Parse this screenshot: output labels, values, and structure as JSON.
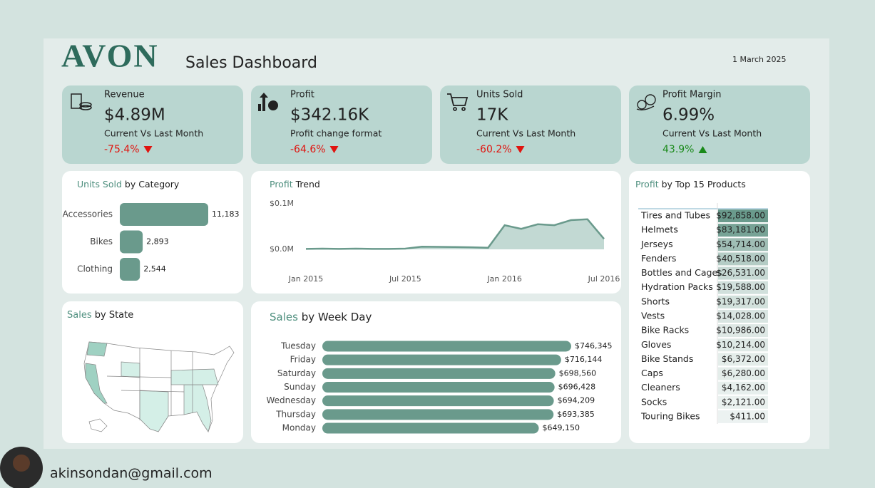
{
  "header": {
    "logo": "AVON",
    "title": "Sales Dashboard",
    "date": "1 March 2025"
  },
  "kpis": [
    {
      "label": "Revenue",
      "value": "$4.89M",
      "subtitle": "Current Vs Last Month",
      "change": "-75.4%",
      "direction": "down"
    },
    {
      "label": "Profit",
      "value": "$342.16K",
      "subtitle": "Profit change format",
      "change": "-64.6%",
      "direction": "down"
    },
    {
      "label": "Units Sold",
      "value": "17K",
      "subtitle": "Current Vs Last Month",
      "change": "-60.2%",
      "direction": "down"
    },
    {
      "label": "Profit Margin",
      "value": "6.99%",
      "subtitle": "Current Vs Last Month",
      "change": "43.9%",
      "direction": "up"
    }
  ],
  "chart_data": [
    {
      "type": "bar",
      "orientation": "horizontal",
      "title": {
        "highlight": "Units Sold",
        "rest": "by Category"
      },
      "categories": [
        "Accessories",
        "Bikes",
        "Clothing"
      ],
      "values": [
        11183,
        2893,
        2544
      ],
      "value_labels": [
        "11,183",
        "2,893",
        "2,544"
      ],
      "color": "#6a9a8c"
    },
    {
      "type": "area",
      "title": {
        "highlight": "Profit",
        "rest": "Trend"
      },
      "x": [
        "2015-01",
        "2015-02",
        "2015-03",
        "2015-04",
        "2015-05",
        "2015-06",
        "2015-07",
        "2015-08",
        "2015-09",
        "2015-10",
        "2015-11",
        "2015-12",
        "2016-01",
        "2016-02",
        "2016-03",
        "2016-04",
        "2016-05",
        "2016-06",
        "2016-07"
      ],
      "values": [
        1000,
        1500,
        1000,
        1500,
        1000,
        1000,
        1500,
        6000,
        5500,
        5000,
        4500,
        3500,
        53000,
        45000,
        55000,
        53000,
        64000,
        66000,
        23000
      ],
      "color": "#6a9a8c",
      "fill": "#c2d9d3",
      "xlim": [
        "2015-01",
        "2016-07"
      ],
      "xticks": [
        {
          "value": "2015-01",
          "label": "Jan 2015"
        },
        {
          "value": "2015-07",
          "label": "Jul 2015"
        },
        {
          "value": "2016-01",
          "label": "Jan 2016"
        },
        {
          "value": "2016-07",
          "label": "Jul 2016"
        }
      ],
      "ylim": [
        0,
        100000
      ],
      "yticks": [
        {
          "value": 100000,
          "label": "$0.1M"
        },
        {
          "value": 0,
          "label": "$0.0M"
        }
      ]
    },
    {
      "type": "bar",
      "orientation": "horizontal",
      "title": {
        "highlight": "Sales",
        "rest": "by Week Day"
      },
      "categories": [
        "Tuesday",
        "Friday",
        "Saturday",
        "Sunday",
        "Wednesday",
        "Thursday",
        "Monday"
      ],
      "values": [
        746345,
        716144,
        698560,
        696428,
        694209,
        693385,
        649150
      ],
      "value_labels": [
        "$746,345",
        "$716,144",
        "$698,560",
        "$696,428",
        "$694,209",
        "$693,385",
        "$649,150"
      ],
      "color": "#6a9a8c"
    },
    {
      "type": "table",
      "title": {
        "highlight": "Profit",
        "rest": "by Top 15 Products"
      },
      "categories": [
        "Tires and Tubes",
        "Helmets",
        "Jerseys",
        "Fenders",
        "Bottles and Cages",
        "Hydration Packs",
        "Shorts",
        "Vests",
        "Bike Racks",
        "Gloves",
        "Bike Stands",
        "Caps",
        "Cleaners",
        "Socks",
        "Touring Bikes"
      ],
      "values": [
        92858,
        83181,
        54714,
        40518,
        26531,
        19588,
        19317,
        14028,
        10986,
        10214,
        6372,
        6280,
        4162,
        2121,
        411
      ],
      "value_labels": [
        "$92,858.00",
        "$83,181.00",
        "$54,714.00",
        "$40,518.00",
        "$26,531.00",
        "$19,588.00",
        "$19,317.00",
        "$14,028.00",
        "$10,986.00",
        "$10,214.00",
        "$6,372.00",
        "$6,280.00",
        "$4,162.00",
        "$2,121.00",
        "$411.00"
      ],
      "color": "#6a9a8c"
    }
  ],
  "map": {
    "title": {
      "highlight": "Sales",
      "rest": "by State"
    }
  },
  "footer": {
    "email": "akinsondan@gmail.com"
  }
}
